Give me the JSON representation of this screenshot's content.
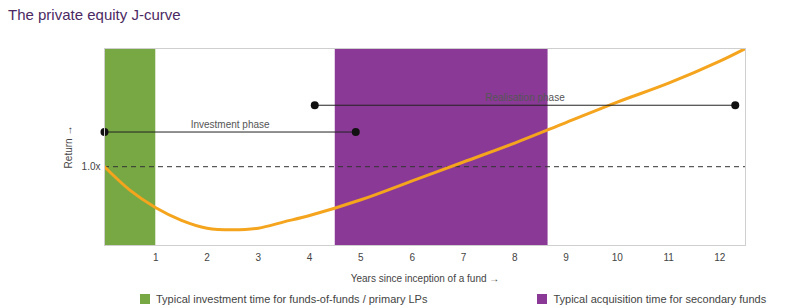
{
  "chart_data": {
    "type": "line",
    "title": "The private equity J-curve",
    "xlabel": "Years since inception of a fund",
    "ylabel": "Return",
    "x": [
      0,
      0.5,
      1,
      1.5,
      2,
      2.5,
      3,
      3.5,
      4,
      5,
      6,
      7,
      8,
      9,
      10,
      11,
      12,
      12.5
    ],
    "values": [
      1.0,
      0.85,
      0.74,
      0.66,
      0.61,
      0.6,
      0.61,
      0.65,
      0.69,
      0.79,
      0.91,
      1.03,
      1.15,
      1.28,
      1.41,
      1.53,
      1.67,
      1.75
    ],
    "color": "#f4a41d",
    "xlim": [
      0,
      12.5
    ],
    "ylim": [
      0.5,
      1.75
    ],
    "xticks": [
      1,
      2,
      3,
      4,
      5,
      6,
      7,
      8,
      9,
      10,
      11,
      12
    ],
    "yticks": [
      {
        "value": 1.0,
        "label": "1.0x"
      }
    ],
    "grid": false,
    "legend": "bottom",
    "reference_line": {
      "y": 1.0,
      "line_style": "dashed"
    },
    "spans": [
      {
        "x": [
          0,
          1
        ],
        "color": "#78a843",
        "label": "Typical investment time for funds-of-funds / primary LPs"
      },
      {
        "x": [
          4.5,
          8.65
        ],
        "color": "#8a3a96",
        "label": "Typical acquisition time for secondary funds"
      }
    ],
    "annotations": [
      {
        "text": "Investment phase",
        "x": [
          0,
          4.9
        ],
        "y": 1.22
      },
      {
        "text": "Realisation phase",
        "x": [
          4.1,
          12.3
        ],
        "y": 1.39
      }
    ]
  }
}
